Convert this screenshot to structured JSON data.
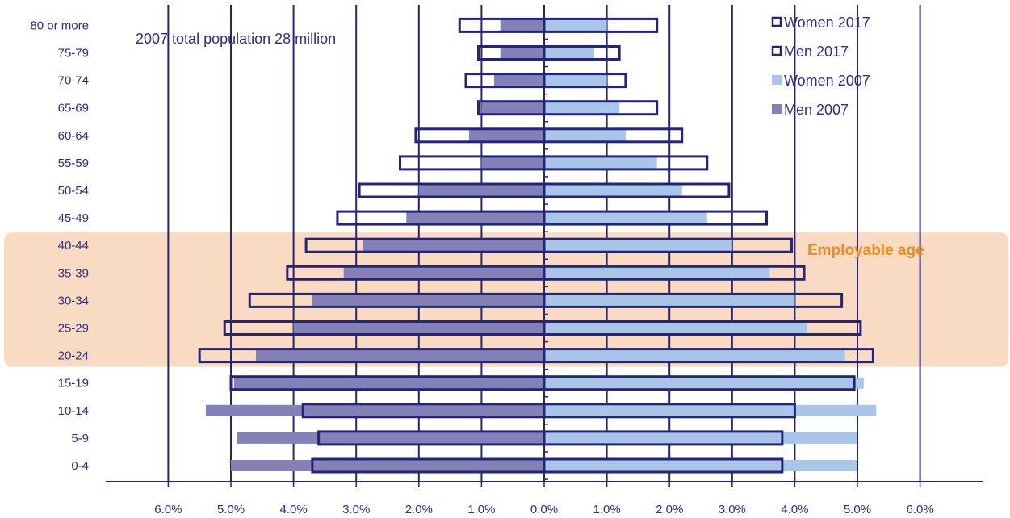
{
  "chart_data": {
    "type": "bar",
    "orientation": "horizontal",
    "categories": [
      "0-4",
      "5-9",
      "10-14",
      "15-19",
      "20-24",
      "25-29",
      "30-34",
      "35-39",
      "40-44",
      "45-49",
      "50-54",
      "55-59",
      "60-64",
      "65-69",
      "70-74",
      "75-79",
      "80 or more"
    ],
    "series": [
      {
        "name": "Women 2017",
        "style": "outline",
        "side": "right",
        "values": [
          3.8,
          3.8,
          4.0,
          4.95,
          5.25,
          5.05,
          4.75,
          4.15,
          3.95,
          3.55,
          2.95,
          2.6,
          2.2,
          1.8,
          1.3,
          1.2,
          1.8
        ]
      },
      {
        "name": "Men 2017",
        "style": "outline",
        "side": "left",
        "values": [
          3.7,
          3.6,
          3.85,
          5.0,
          5.5,
          5.1,
          4.7,
          4.1,
          3.8,
          3.3,
          2.95,
          2.3,
          2.05,
          1.05,
          1.25,
          1.05,
          1.35
        ]
      },
      {
        "name": "Women 2007",
        "style": "filled",
        "side": "right",
        "values": [
          5.0,
          5.0,
          5.3,
          5.1,
          4.8,
          4.2,
          4.0,
          3.6,
          3.0,
          2.6,
          2.2,
          1.8,
          1.3,
          1.2,
          1.0,
          0.8,
          1.0
        ]
      },
      {
        "name": "Men 2007",
        "style": "filled",
        "side": "left",
        "values": [
          5.0,
          4.9,
          5.4,
          4.95,
          4.6,
          4.0,
          3.7,
          3.2,
          2.9,
          2.2,
          2.0,
          1.0,
          1.2,
          1.0,
          0.8,
          0.7,
          0.7
        ]
      }
    ],
    "x_tick_labels": [
      "6.0%",
      "5.0%",
      "4.0%",
      "3.0%",
      "2.0%",
      "1.0%",
      "0.0%",
      "1.0%",
      "2.0%",
      "3.0%",
      "4.0%",
      "5.0%",
      "6.0%"
    ],
    "x_tick_values": [
      -6,
      -5,
      -4,
      -3,
      -2,
      -1,
      0,
      1,
      2,
      3,
      4,
      5,
      6
    ],
    "xlim": [
      -7,
      7
    ],
    "vertical_grid": true,
    "legend_position": "top-right",
    "title": "",
    "xlabel": "",
    "ylabel": "",
    "annotations": {
      "note": "2007 total population 28 million",
      "highlight_band": {
        "label": "Employable age",
        "from_category": "20-24",
        "to_category": "40-44"
      }
    }
  },
  "colors": {
    "outline": "#23247A",
    "women_2007": "#A9C6E8",
    "men_2007": "#8480B8",
    "text": "#2B2E8C",
    "band_fill": "#F8DBC2",
    "band_label": "#F28A22",
    "grid": "#23247A"
  }
}
